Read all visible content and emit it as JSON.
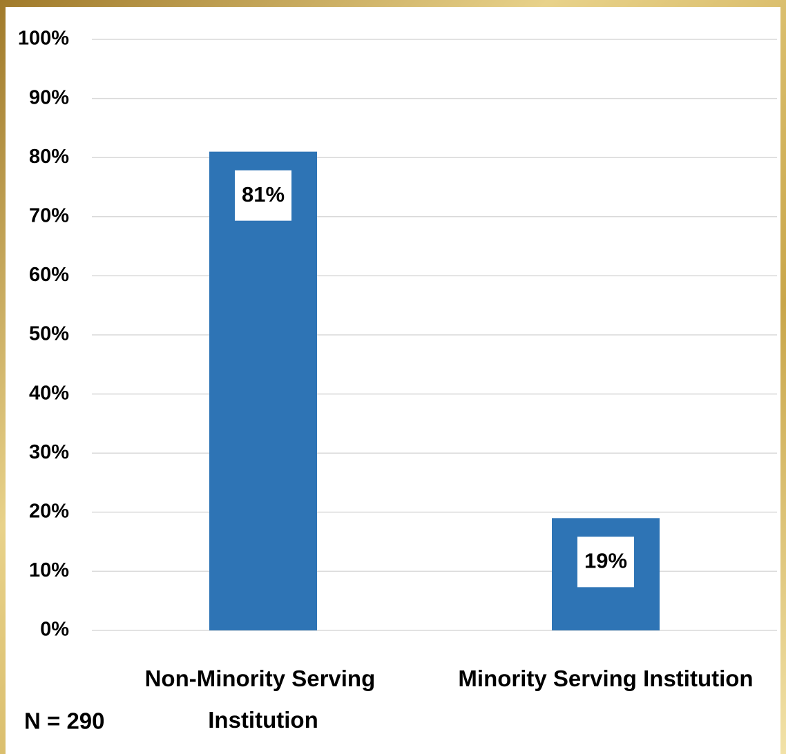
{
  "chart_data": {
    "type": "bar",
    "categories": [
      "Non-Minority Serving Institution",
      "Minority Serving Institution"
    ],
    "values": [
      81,
      19
    ],
    "value_labels": [
      "81%",
      "19%"
    ],
    "color": "#2e74b5",
    "ylim": [
      0,
      100
    ],
    "yticks": [
      {
        "value": 0,
        "label": "0%"
      },
      {
        "value": 10,
        "label": "10%"
      },
      {
        "value": 20,
        "label": "20%"
      },
      {
        "value": 30,
        "label": "30%"
      },
      {
        "value": 40,
        "label": "40%"
      },
      {
        "value": 50,
        "label": "50%"
      },
      {
        "value": 60,
        "label": "60%"
      },
      {
        "value": 70,
        "label": "70%"
      },
      {
        "value": 80,
        "label": "80%"
      },
      {
        "value": 90,
        "label": "90%"
      },
      {
        "value": 100,
        "label": "100%"
      }
    ],
    "grid": true,
    "annotation": "N = 290"
  }
}
